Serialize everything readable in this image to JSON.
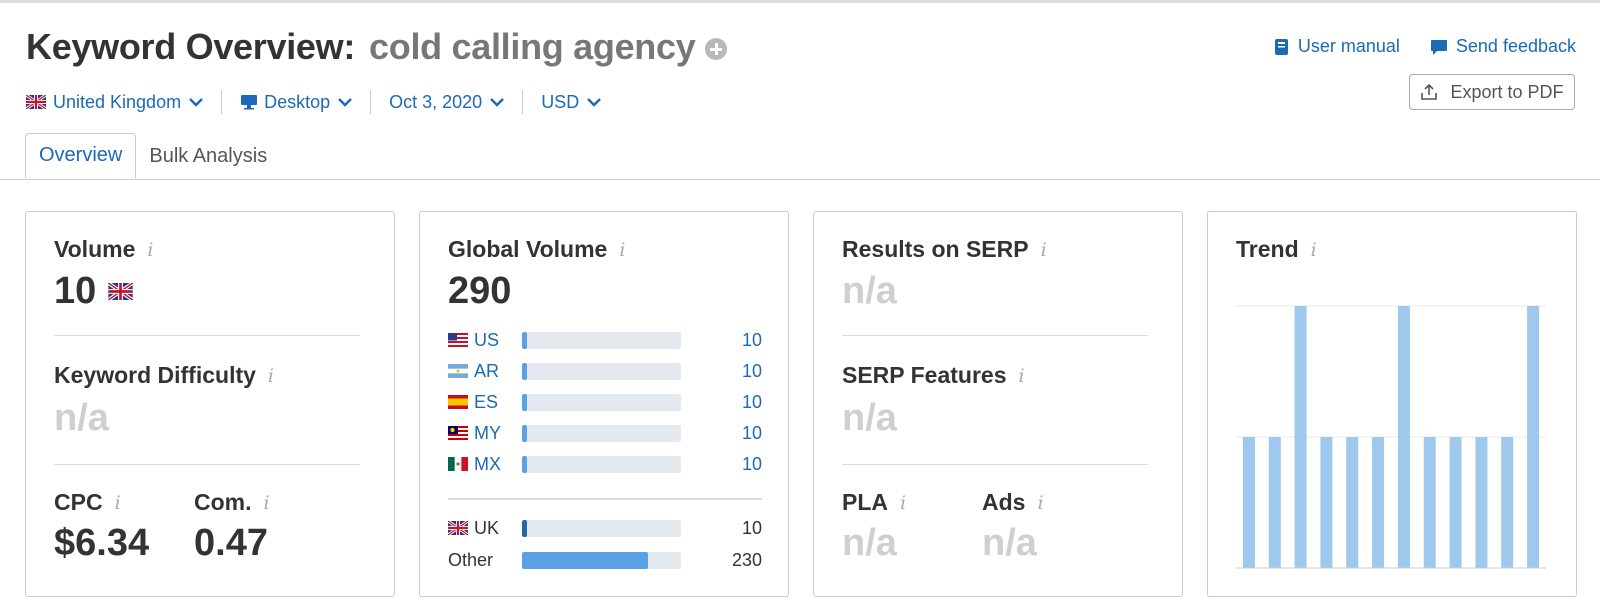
{
  "header": {
    "title": "Keyword Overview:",
    "keyword": "cold calling agency",
    "user_manual": "User manual",
    "send_feedback": "Send feedback",
    "export": "Export to PDF"
  },
  "filters": {
    "country": "United Kingdom",
    "device": "Desktop",
    "date": "Oct 3, 2020",
    "currency": "USD"
  },
  "tabs": [
    "Overview",
    "Bulk Analysis"
  ],
  "cards": {
    "volume": {
      "label": "Volume",
      "value": "10"
    },
    "difficulty": {
      "label": "Keyword Difficulty",
      "value": "n/a"
    },
    "cpc": {
      "label": "CPC",
      "value": "$6.34"
    },
    "com": {
      "label": "Com.",
      "value": "0.47"
    },
    "global_volume": {
      "label": "Global Volume",
      "value": "290",
      "rows": [
        {
          "code": "US",
          "value": "10",
          "share": 0.03
        },
        {
          "code": "AR",
          "value": "10",
          "share": 0.03
        },
        {
          "code": "ES",
          "value": "10",
          "share": 0.03
        },
        {
          "code": "MY",
          "value": "10",
          "share": 0.03
        },
        {
          "code": "MX",
          "value": "10",
          "share": 0.03
        },
        {
          "code": "UK",
          "value": "10",
          "share": 0.03
        },
        {
          "code": "Other",
          "value": "230",
          "share": 0.79
        }
      ]
    },
    "results_serp": {
      "label": "Results on SERP",
      "value": "n/a"
    },
    "serp_features": {
      "label": "SERP Features",
      "value": "n/a"
    },
    "pla": {
      "label": "PLA",
      "value": "n/a"
    },
    "ads": {
      "label": "Ads",
      "value": "n/a"
    },
    "trend": {
      "label": "Trend"
    }
  },
  "info_glyph": "i",
  "colors": {
    "link": "#1c69b7",
    "bar": "#5aa1e6",
    "trend_bar": "#9fc9ec",
    "na": "#cfcfcf"
  },
  "chart_data": {
    "type": "bar",
    "title": "Trend",
    "values": [
      0.5,
      0.5,
      1.0,
      0.5,
      0.5,
      0.5,
      1.0,
      0.5,
      0.5,
      0.5,
      0.5,
      1.0
    ],
    "ylim": [
      0,
      1
    ],
    "grid": true
  }
}
